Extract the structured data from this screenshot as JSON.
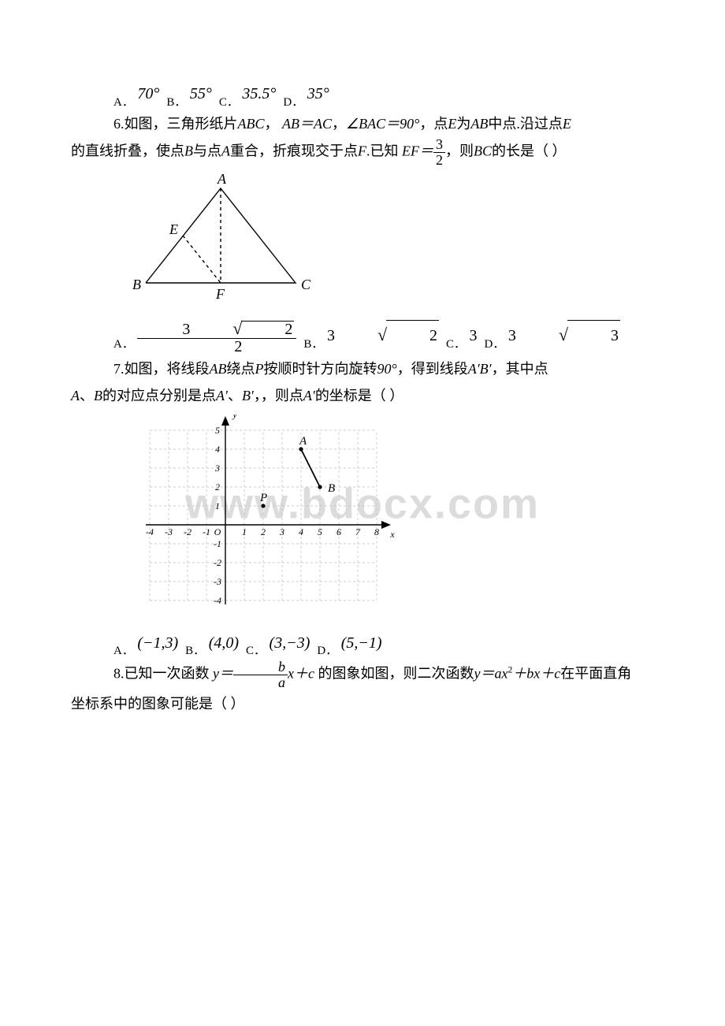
{
  "watermark": "www.bdocx.com",
  "q5": {
    "labels": {
      "A": "A．",
      "B": "B．",
      "C": "C．",
      "D": "D．"
    },
    "opts": {
      "A": "70°",
      "B": "55°",
      "C": "35.5°",
      "D": "35°"
    }
  },
  "q6": {
    "num": "6",
    "stem_1": ".如图，三角形纸片",
    "ABC": "ABC",
    "comma1": "，",
    "eq1": "AB＝AC",
    "comma2": "，",
    "eq2": "∠BAC＝90°",
    "comma3": "，点",
    "E": "E",
    "mid": "为",
    "AB": "AB",
    "mid2": "中点.沿过点",
    "E2": "E",
    "line2a": "的直线折叠，使点",
    "B": "B",
    "line2b": "与点",
    "A": "A",
    "line2c": "重合，折痕现交于点",
    "F": "F",
    "line2d": ".已知",
    "EF": "EF＝",
    "frac_num": "3",
    "frac_den": "2",
    "line2e": "，则",
    "BC": "BC",
    "line2f": "的长是（ ）",
    "figure": {
      "labels": {
        "A": "A",
        "B": "B",
        "C": "C",
        "E": "E",
        "F": "F"
      },
      "A_pos": [
        120,
        8
      ],
      "B_pos": [
        20,
        140
      ],
      "C_pos": [
        220,
        140
      ],
      "E_pos": [
        70,
        74
      ],
      "F_pos": [
        120,
        140
      ],
      "line_color": "#000000",
      "dash_color": "#000000"
    },
    "labels": {
      "A": "A．",
      "B": "B．",
      "C": "C．",
      "D": "D．"
    },
    "optA_num": "3",
    "optA_rad": "2",
    "optA_den": "2",
    "optB_coef": "3",
    "optB_rad": "2",
    "optC": "3",
    "optD_coef": "3",
    "optD_rad": "3"
  },
  "q7": {
    "num": "7",
    "stem_a": ".如图，将线段",
    "AB": "AB",
    "stem_b": "绕点",
    "P": "P",
    "stem_c": "按顺时针方向旋转",
    "deg": "90°",
    "stem_d": "，得到线段",
    "ABp": "A′B′",
    "stem_e": "，其中点",
    "line2a": "A",
    "line2b": "、",
    "line2c": "B",
    "line2d": "的对应点分别是点",
    "line2e": "A′",
    "line2f": "、",
    "line2g": "B′",
    "line2h": "，，则点",
    "line2i": "A′",
    "line2j": "的坐标是（ ）",
    "figure": {
      "x_min": -4,
      "x_max": 8,
      "y_min": -4,
      "y_max": 5,
      "cell": 24,
      "grid_color": "#bfbfbf",
      "axis_color": "#000000",
      "font_size": 12,
      "A": [
        4,
        4
      ],
      "B": [
        5,
        2
      ],
      "P": [
        2,
        1
      ],
      "A_label": "A",
      "B_label": "B",
      "P_label": "P",
      "x_label": "x",
      "y_label": "y",
      "O_label": "O",
      "x_ticks": [
        -4,
        -3,
        -2,
        -1,
        1,
        2,
        3,
        4,
        5,
        6,
        7,
        8
      ],
      "y_ticks": [
        -4,
        -3,
        -2,
        -1,
        1,
        2,
        3,
        4,
        5
      ],
      "line_color": "#000000"
    },
    "labels": {
      "A": "A．",
      "B": "B．",
      "C": "C．",
      "D": "D．"
    },
    "opts": {
      "A": "(−1,3)",
      "B": "(4,0)",
      "C": "(3,−3)",
      "D": "(5,−1)"
    }
  },
  "q8": {
    "num": "8",
    "stem_a": ".已知一次函数",
    "y": "y＝",
    "frac_num": "b",
    "frac_den": "a",
    "x": "x＋c",
    "stem_b": "的图象如图，则二次函数",
    "quad": "y＝ax",
    "sq": "2",
    "quad_b": "＋bx＋c",
    "stem_c": "在平面直角",
    "line2": "坐标系中的图象可能是（ ）"
  }
}
